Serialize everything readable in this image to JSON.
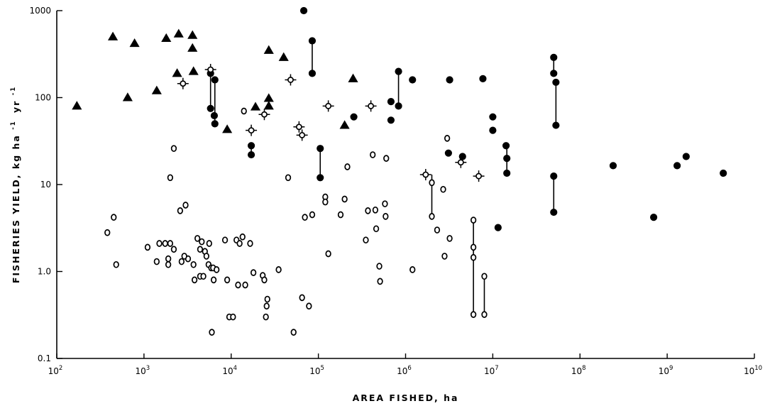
{
  "chart_data": {
    "type": "scatter",
    "xlabel": "AREA FISHED, ha",
    "ylabel": "FISHERIES YIELD, kg ha⁻¹ yr⁻¹",
    "ylabel_main": "FISHERIES YIELD, kg ha",
    "ylabel_exp1": "-1",
    "ylabel_mid": "yr",
    "ylabel_exp2": "-1",
    "x_scale": "log",
    "y_scale": "log",
    "xlim": [
      100,
      10000000000
    ],
    "ylim": [
      0.1,
      1000
    ],
    "grid": false,
    "x_ticks": [
      {
        "value": 100,
        "base": "10",
        "exp": "2"
      },
      {
        "value": 1000,
        "base": "10",
        "exp": "3"
      },
      {
        "value": 10000,
        "base": "10",
        "exp": "4"
      },
      {
        "value": 100000,
        "base": "10",
        "exp": "5"
      },
      {
        "value": 1000000,
        "base": "10",
        "exp": "6"
      },
      {
        "value": 10000000,
        "base": "10",
        "exp": "7"
      },
      {
        "value": 100000000,
        "base": "10",
        "exp": "8"
      },
      {
        "value": 1000000000,
        "base": "10",
        "exp": "9"
      },
      {
        "value": 10000000000,
        "base": "10",
        "exp": "10"
      }
    ],
    "y_ticks": [
      {
        "value": 0.1,
        "label": "0.1"
      },
      {
        "value": 1,
        "label": "1.0"
      },
      {
        "value": 10,
        "label": "10"
      },
      {
        "value": 100,
        "label": "100"
      },
      {
        "value": 1000,
        "label": "1000"
      }
    ],
    "series": [
      {
        "marker": "filled-circle",
        "points": [
          [
            68000,
            1000
          ],
          [
            85000,
            450
          ],
          [
            85000,
            190
          ],
          [
            5800,
            190
          ],
          [
            5800,
            75
          ],
          [
            6500,
            160
          ],
          [
            6400,
            62
          ],
          [
            6500,
            50
          ],
          [
            17000,
            28
          ],
          [
            17000,
            22
          ],
          [
            105000,
            26
          ],
          [
            105000,
            12
          ],
          [
            255000,
            60
          ],
          [
            680000,
            90
          ],
          [
            680000,
            55
          ],
          [
            830000,
            200
          ],
          [
            830000,
            80
          ],
          [
            1200000,
            160
          ],
          [
            3200000,
            160
          ],
          [
            3100000,
            23
          ],
          [
            4500000,
            21
          ],
          [
            7700000,
            165
          ],
          [
            10000000,
            60
          ],
          [
            10000000,
            42
          ],
          [
            14200000,
            28
          ],
          [
            14500000,
            20
          ],
          [
            14500000,
            13.5
          ],
          [
            11500000,
            3.2
          ],
          [
            50000000,
            290
          ],
          [
            50000000,
            190
          ],
          [
            53000000,
            150
          ],
          [
            53000000,
            48
          ],
          [
            50000000,
            12.5
          ],
          [
            50000000,
            4.8
          ],
          [
            240000000,
            16.5
          ],
          [
            700000000,
            4.2
          ],
          [
            1300000000,
            16.5
          ],
          [
            1650000000,
            21
          ],
          [
            4400000000,
            13.5
          ]
        ]
      },
      {
        "marker": "open-circle",
        "points": [
          [
            380,
            2.8
          ],
          [
            450,
            4.2
          ],
          [
            480,
            1.2
          ],
          [
            1100,
            1.9
          ],
          [
            1400,
            1.3
          ],
          [
            1500,
            2.1
          ],
          [
            1750,
            2.1
          ],
          [
            1900,
            1.4
          ],
          [
            1900,
            1.2
          ],
          [
            2000,
            2.1
          ],
          [
            2000,
            12
          ],
          [
            2200,
            26
          ],
          [
            2200,
            1.8
          ],
          [
            2600,
            5
          ],
          [
            2700,
            1.3
          ],
          [
            3000,
            5.8
          ],
          [
            3200,
            1.4
          ],
          [
            2900,
            1.5
          ],
          [
            3700,
            1.2
          ],
          [
            3800,
            0.8
          ],
          [
            4100,
            2.4
          ],
          [
            4400,
            1.8
          ],
          [
            4400,
            0.88
          ],
          [
            4600,
            2.2
          ],
          [
            4800,
            0.88
          ],
          [
            5000,
            1.7
          ],
          [
            5200,
            1.5
          ],
          [
            5500,
            1.2
          ],
          [
            5600,
            2.1
          ],
          [
            5900,
            1.1
          ],
          [
            6200,
            1.1
          ],
          [
            6300,
            0.8
          ],
          [
            6800,
            1.05
          ],
          [
            8500,
            2.3
          ],
          [
            9000,
            0.8
          ],
          [
            9500,
            0.3
          ],
          [
            10500,
            0.3
          ],
          [
            11500,
            2.3
          ],
          [
            12000,
            0.7
          ],
          [
            12500,
            2.1
          ],
          [
            13500,
            2.5
          ],
          [
            14000,
            70
          ],
          [
            14500,
            0.7
          ],
          [
            16500,
            2.1
          ],
          [
            18000,
            0.97
          ],
          [
            23000,
            0.9
          ],
          [
            24000,
            0.8
          ],
          [
            25500,
            0.4
          ],
          [
            25000,
            0.3
          ],
          [
            26000,
            0.48
          ],
          [
            35000,
            1.05
          ],
          [
            45000,
            12
          ],
          [
            52000,
            0.2
          ],
          [
            6000,
            0.2
          ],
          [
            65000,
            0.5
          ],
          [
            70000,
            4.2
          ],
          [
            78000,
            0.4
          ],
          [
            85000,
            4.5
          ],
          [
            120000,
            7.2
          ],
          [
            120000,
            6.3
          ],
          [
            130000,
            1.6
          ],
          [
            180000,
            4.5
          ],
          [
            200000,
            6.8
          ],
          [
            215000,
            16
          ],
          [
            350000,
            2.3
          ],
          [
            370000,
            5
          ],
          [
            420000,
            22
          ],
          [
            450000,
            5.1
          ],
          [
            460000,
            3.1
          ],
          [
            500000,
            1.15
          ],
          [
            510000,
            0.77
          ],
          [
            580000,
            6
          ],
          [
            590000,
            4.3
          ],
          [
            600000,
            20
          ],
          [
            1200000,
            1.05
          ],
          [
            2000000,
            10.5
          ],
          [
            2000000,
            4.3
          ],
          [
            2300000,
            3
          ],
          [
            2700000,
            8.8
          ],
          [
            2800000,
            1.5
          ],
          [
            3000000,
            34
          ],
          [
            3200000,
            2.4
          ],
          [
            6000000,
            3.9
          ],
          [
            6000000,
            1.9
          ],
          [
            6000000,
            1.45
          ],
          [
            6000000,
            0.32
          ],
          [
            8000000,
            0.88
          ],
          [
            8000000,
            0.32
          ]
        ]
      },
      {
        "marker": "filled-triangle",
        "points": [
          [
            170,
            80
          ],
          [
            440,
            500
          ],
          [
            650,
            100
          ],
          [
            780,
            420
          ],
          [
            1400,
            120
          ],
          [
            1800,
            480
          ],
          [
            2400,
            190
          ],
          [
            2500,
            540
          ],
          [
            3600,
            520
          ],
          [
            3600,
            370
          ],
          [
            3700,
            200
          ],
          [
            9000,
            43
          ],
          [
            19000,
            78
          ],
          [
            27000,
            80
          ],
          [
            27000,
            98
          ],
          [
            27000,
            350
          ],
          [
            40000,
            290
          ],
          [
            200000,
            48
          ],
          [
            250000,
            165
          ]
        ]
      },
      {
        "marker": "crossed-open-circle",
        "points": [
          [
            2800,
            145
          ],
          [
            5800,
            210
          ],
          [
            17000,
            42
          ],
          [
            24000,
            64
          ],
          [
            48000,
            160
          ],
          [
            60000,
            46
          ],
          [
            65000,
            37
          ],
          [
            130000,
            80
          ],
          [
            400000,
            80
          ],
          [
            1700000,
            13
          ],
          [
            4300000,
            18
          ],
          [
            6900000,
            12.5
          ]
        ]
      }
    ],
    "connectors": [
      {
        "x": 85000,
        "y1": 190,
        "y2": 450
      },
      {
        "x": 5800,
        "y1": 75,
        "y2": 210
      },
      {
        "x": 6500,
        "y1": 50,
        "y2": 160
      },
      {
        "x": 17000,
        "y1": 22,
        "y2": 28
      },
      {
        "x": 105000,
        "y1": 12,
        "y2": 26
      },
      {
        "x": 830000,
        "y1": 80,
        "y2": 200
      },
      {
        "x": 14500000,
        "y1": 13.5,
        "y2": 28
      },
      {
        "x": 50000000,
        "y1": 190,
        "y2": 290
      },
      {
        "x": 53000000,
        "y1": 48,
        "y2": 150
      },
      {
        "x": 50000000,
        "y1": 4.8,
        "y2": 12.5
      },
      {
        "x": 2000000,
        "y1": 4.3,
        "y2": 13
      },
      {
        "x": 6000000,
        "y1": 0.32,
        "y2": 3.9
      },
      {
        "x": 8000000,
        "y1": 0.32,
        "y2": 0.88
      }
    ]
  }
}
